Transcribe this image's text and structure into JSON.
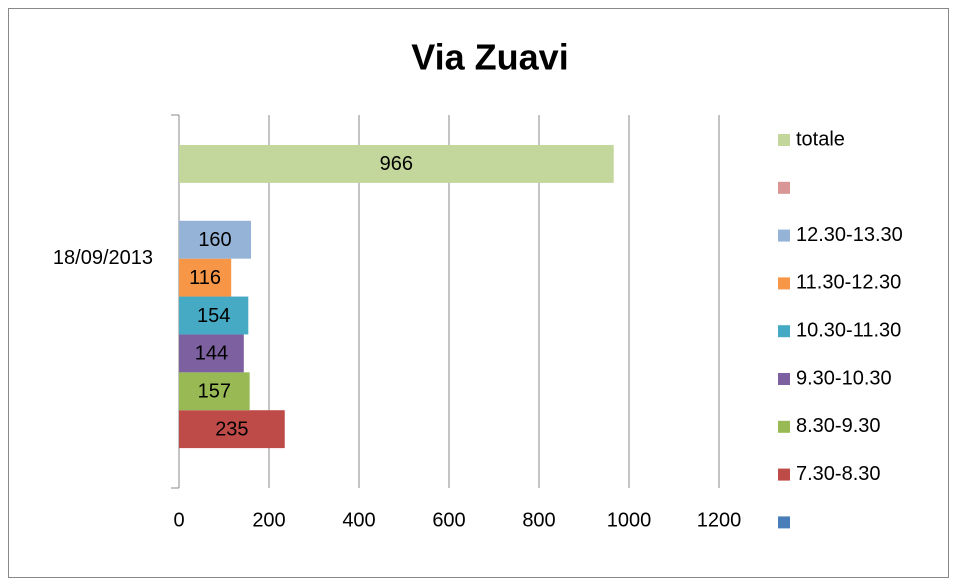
{
  "chart_data": {
    "type": "bar",
    "orientation": "horizontal",
    "title": "Via Zuavi",
    "categories": [
      "18/09/2013"
    ],
    "series": [
      {
        "name": null,
        "color": "#4a7ebb",
        "values": [
          null
        ]
      },
      {
        "name": "7.30-8.30",
        "color": "#be4b48",
        "values": [
          235
        ]
      },
      {
        "name": "8.30-9.30",
        "color": "#98b954",
        "values": [
          157
        ]
      },
      {
        "name": "9.30-10.30",
        "color": "#7d60a0",
        "values": [
          144
        ]
      },
      {
        "name": "10.30-11.30",
        "color": "#46aac5",
        "values": [
          154
        ]
      },
      {
        "name": "11.30-12.30",
        "color": "#f79646",
        "values": [
          116
        ]
      },
      {
        "name": "12.30-13.30",
        "color": "#95b3d7",
        "values": [
          160
        ]
      },
      {
        "name": null,
        "color": "#d99694",
        "values": [
          null
        ]
      },
      {
        "name": "totale",
        "color": "#c3d69b",
        "values": [
          966
        ]
      }
    ],
    "xlim": [
      0,
      1200
    ],
    "xticks": [
      0,
      200,
      400,
      600,
      800,
      1000,
      1200
    ],
    "grid": true,
    "legend": "right"
  }
}
